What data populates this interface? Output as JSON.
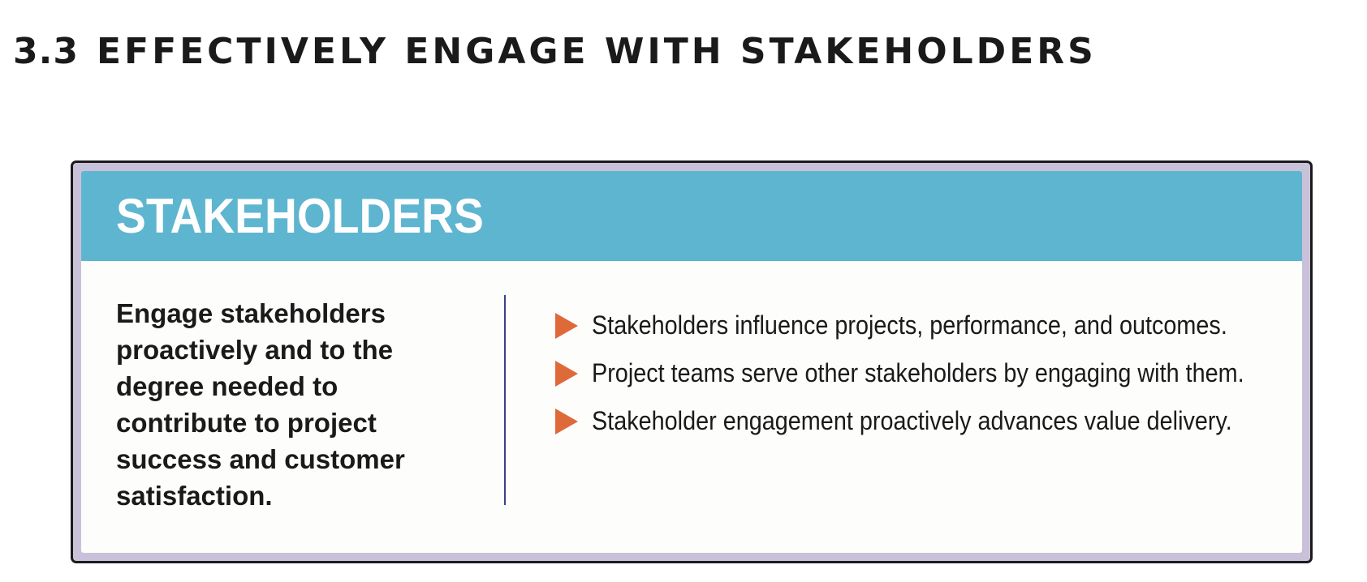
{
  "section": {
    "number": "3.3",
    "title": "EFFECTIVELY ENGAGE WITH STAKEHOLDERS"
  },
  "card": {
    "title": "STAKEHOLDERS",
    "statement": "Engage stakeholders proactively and to the degree needed to contribute to project success and customer satisfaction.",
    "points": [
      "Stakeholders influence projects, performance, and outcomes.",
      "Project teams serve other stakeholders by engaging with them.",
      "Stakeholder engagement proactively advances value delivery."
    ]
  },
  "colors": {
    "header_band": "#5eb5cf",
    "card_frame": "#c9c1d9",
    "bullet": "#de6a3a",
    "divider": "#3b3f87"
  },
  "icons": {
    "bullet": "triangle-arrow-right"
  }
}
